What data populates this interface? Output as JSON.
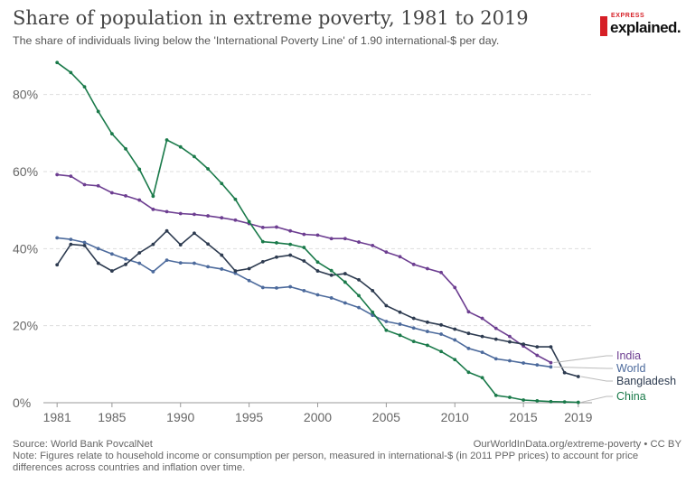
{
  "header": {
    "title": "Share of population in extreme poverty, 1981 to 2019",
    "subtitle": "The share of individuals living below the 'International Poverty Line' of 1.90 international-$ per day."
  },
  "logo": {
    "top_text": "EXPRESS",
    "main_text": "explained."
  },
  "footer": {
    "source": "Source: World Bank PovcalNet",
    "credit": "OurWorldInData.org/extreme-poverty • CC BY",
    "note": "Note: Figures relate to household income or consumption per person, measured in international-$ (in 2011 PPP prices) to account for price differences across countries and inflation over time."
  },
  "chart_data": {
    "type": "line",
    "title": "Share of population in extreme poverty, 1981 to 2019",
    "xlabel": "",
    "ylabel": "",
    "xlim": [
      1980,
      2020
    ],
    "ylim": [
      0,
      90
    ],
    "y_ticks": [
      0,
      20,
      40,
      60,
      80
    ],
    "y_tick_labels": [
      "0%",
      "20%",
      "40%",
      "60%",
      "80%"
    ],
    "x_ticks": [
      1981,
      1985,
      1990,
      1995,
      2000,
      2005,
      2010,
      2015,
      2019
    ],
    "x_tick_labels": [
      "1981",
      "1985",
      "1990",
      "1995",
      "2000",
      "2005",
      "2010",
      "2015",
      "2019"
    ],
    "grid": "horizontal dashed",
    "legend": "labels at right end of lines",
    "colors": {
      "India": "#6d3e91",
      "World": "#4c6a9c",
      "Bangladesh": "#2d3b50",
      "China": "#1a7a4a"
    },
    "series": [
      {
        "name": "India",
        "x": [
          1981,
          1982,
          1983,
          1984,
          1985,
          1986,
          1987,
          1988,
          1989,
          1990,
          1991,
          1992,
          1993,
          1994,
          1995,
          1996,
          1997,
          1998,
          1999,
          2000,
          2001,
          2002,
          2003,
          2004,
          2005,
          2006,
          2007,
          2008,
          2009,
          2010,
          2011,
          2012,
          2013,
          2014,
          2015,
          2016,
          2017
        ],
        "values": [
          59.2,
          58.8,
          56.6,
          56.3,
          54.5,
          53.7,
          52.6,
          50.2,
          49.6,
          49.1,
          48.9,
          48.5,
          48.0,
          47.4,
          46.5,
          45.5,
          45.6,
          44.6,
          43.7,
          43.5,
          42.6,
          42.6,
          41.7,
          40.8,
          39.1,
          37.9,
          35.9,
          34.8,
          33.8,
          29.9,
          23.6,
          21.9,
          19.3,
          17.2,
          14.7,
          12.3,
          10.4
        ]
      },
      {
        "name": "World",
        "x": [
          1981,
          1982,
          1983,
          1984,
          1985,
          1986,
          1987,
          1988,
          1989,
          1990,
          1991,
          1992,
          1993,
          1994,
          1995,
          1996,
          1997,
          1998,
          1999,
          2000,
          2001,
          2002,
          2003,
          2004,
          2005,
          2006,
          2007,
          2008,
          2009,
          2010,
          2011,
          2012,
          2013,
          2014,
          2015,
          2016,
          2017
        ],
        "values": [
          42.8,
          42.4,
          41.6,
          40.0,
          38.6,
          37.3,
          36.2,
          34.0,
          37.0,
          36.3,
          36.2,
          35.3,
          34.7,
          33.6,
          31.7,
          29.9,
          29.8,
          30.1,
          29.1,
          28.0,
          27.2,
          25.9,
          24.7,
          22.7,
          21.1,
          20.4,
          19.4,
          18.5,
          17.8,
          16.3,
          14.1,
          13.1,
          11.4,
          10.9,
          10.3,
          9.8,
          9.3
        ]
      },
      {
        "name": "Bangladesh",
        "x": [
          1981,
          1982,
          1983,
          1984,
          1985,
          1986,
          1987,
          1988,
          1989,
          1990,
          1991,
          1992,
          1993,
          1994,
          1995,
          1996,
          1997,
          1998,
          1999,
          2000,
          2001,
          2002,
          2003,
          2004,
          2005,
          2006,
          2007,
          2008,
          2009,
          2010,
          2011,
          2012,
          2013,
          2014,
          2015,
          2016,
          2017,
          2018,
          2019
        ],
        "values": [
          35.8,
          41.1,
          40.8,
          36.2,
          34.2,
          35.9,
          38.9,
          41.1,
          44.6,
          41.0,
          44.0,
          41.2,
          38.3,
          34.2,
          34.8,
          36.6,
          37.8,
          38.3,
          36.8,
          34.2,
          33.1,
          33.5,
          31.9,
          29.1,
          25.2,
          23.5,
          21.9,
          20.9,
          20.2,
          19.1,
          18.0,
          17.2,
          16.5,
          15.8,
          15.2,
          14.5,
          14.5,
          7.8,
          6.8
        ]
      },
      {
        "name": "China",
        "x": [
          1981,
          1982,
          1983,
          1984,
          1985,
          1986,
          1987,
          1988,
          1989,
          1990,
          1991,
          1992,
          1993,
          1994,
          1995,
          1996,
          1997,
          1998,
          1999,
          2000,
          2001,
          2002,
          2003,
          2004,
          2005,
          2006,
          2007,
          2008,
          2009,
          2010,
          2011,
          2012,
          2013,
          2014,
          2015,
          2016,
          2017,
          2018,
          2019
        ],
        "values": [
          88.3,
          85.7,
          82.0,
          75.6,
          69.8,
          65.9,
          60.6,
          53.6,
          68.2,
          66.4,
          63.9,
          60.7,
          56.9,
          52.8,
          47.0,
          41.8,
          41.5,
          41.1,
          40.3,
          36.5,
          34.3,
          31.3,
          27.8,
          23.5,
          18.8,
          17.5,
          15.9,
          14.9,
          13.3,
          11.2,
          7.9,
          6.5,
          1.9,
          1.4,
          0.7,
          0.5,
          0.3,
          0.2,
          0.1
        ]
      }
    ]
  }
}
